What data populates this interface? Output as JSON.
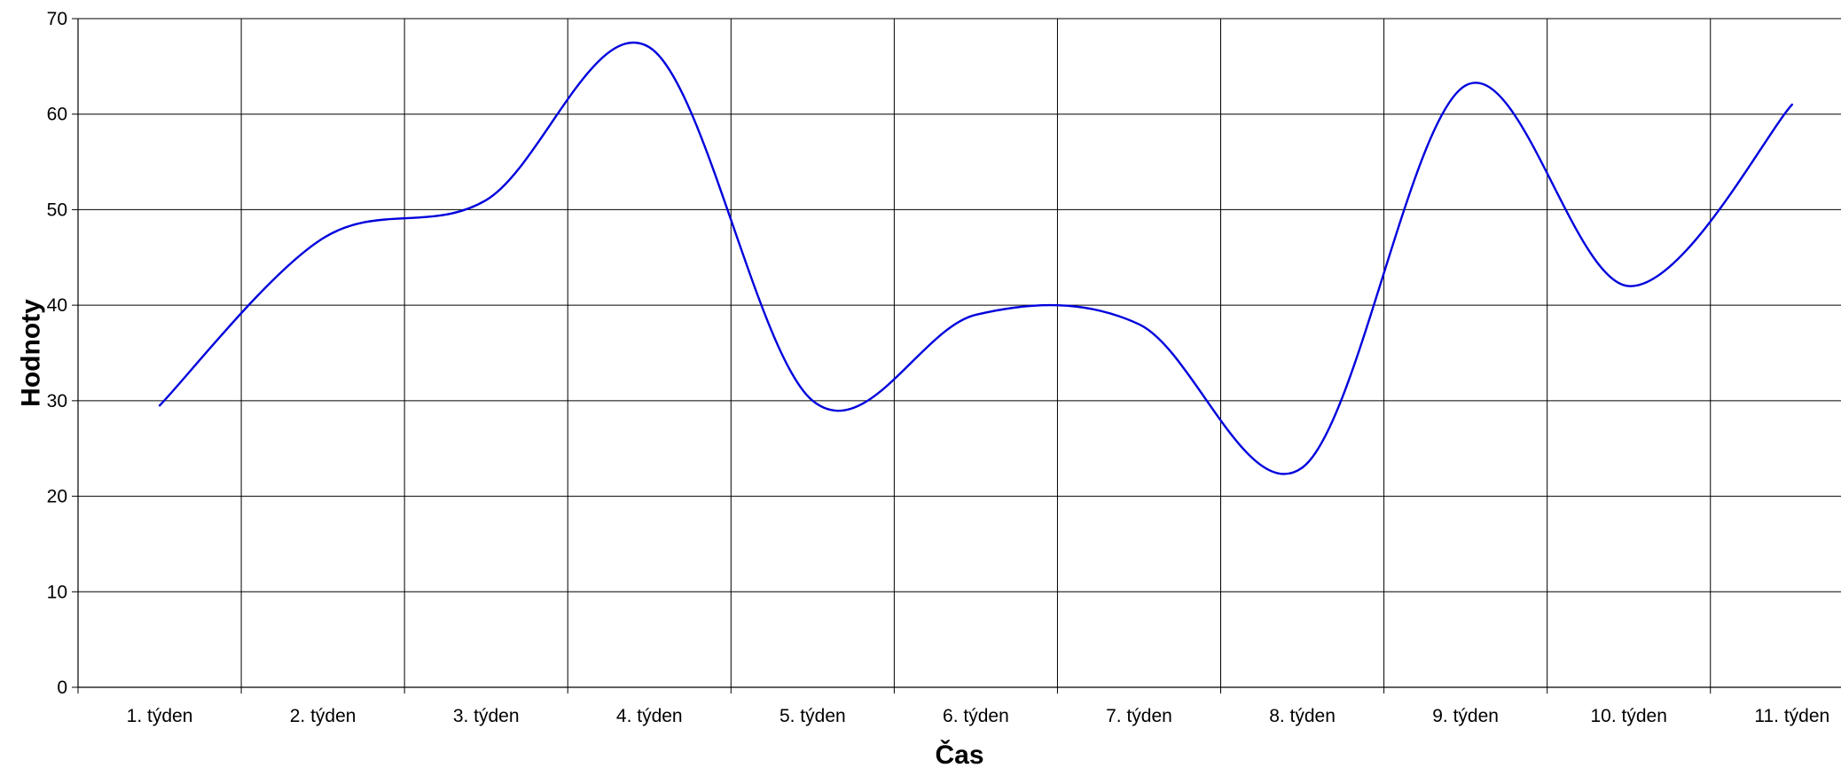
{
  "chart_data": {
    "type": "line",
    "smooth": true,
    "categories": [
      "1. týden",
      "2. týden",
      "3. týden",
      "4. týden",
      "5. týden",
      "6. týden",
      "7. týden",
      "8. týden",
      "9. týden",
      "10. týden",
      "11. týden"
    ],
    "series": [
      {
        "values": [
          29.5,
          47,
          51,
          67,
          30,
          39,
          38,
          23,
          63,
          42,
          61
        ]
      }
    ],
    "xlabel": "Čas",
    "ylabel": "Hodnoty",
    "ylim": [
      0,
      70
    ],
    "yticks": [
      0,
      10,
      20,
      30,
      40,
      50,
      60,
      70
    ],
    "grid": true,
    "legend": "none",
    "colors": {
      "line": "#0000dd",
      "grid": "#000000"
    }
  }
}
